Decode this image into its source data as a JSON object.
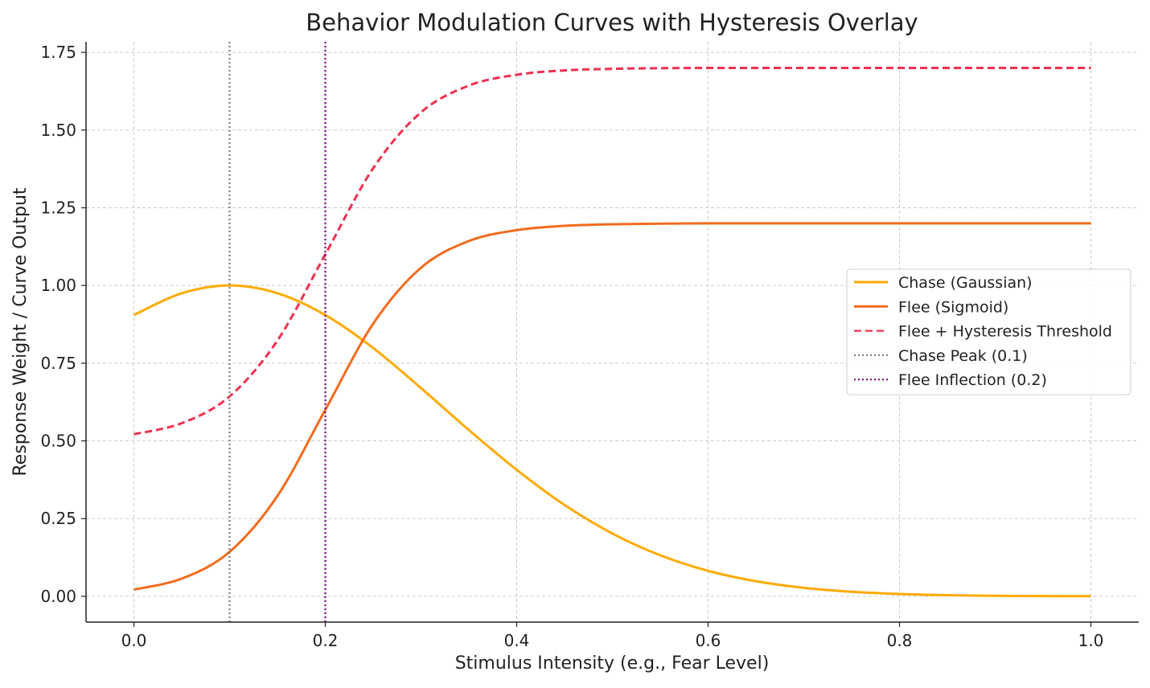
{
  "chart_data": {
    "type": "line",
    "title": "Behavior Modulation Curves with Hysteresis Overlay",
    "xlabel": "Stimulus Intensity (e.g., Fear Level)",
    "ylabel": "Response Weight / Curve Output",
    "xlim": [
      -0.05,
      1.05
    ],
    "ylim": [
      -0.083,
      1.784
    ],
    "xticks": [
      0.0,
      0.2,
      0.4,
      0.6,
      0.8,
      1.0
    ],
    "xtick_labels": [
      "0.0",
      "0.2",
      "0.4",
      "0.6",
      "0.8",
      "1.0"
    ],
    "yticks": [
      0.0,
      0.25,
      0.5,
      0.75,
      1.0,
      1.25,
      1.5,
      1.75
    ],
    "ytick_labels": [
      "0.00",
      "0.25",
      "0.50",
      "0.75",
      "1.00",
      "1.25",
      "1.50",
      "1.75"
    ],
    "grid": true,
    "legend_position": "center-right",
    "x": [
      0,
      0.05,
      0.1,
      0.15,
      0.2,
      0.25,
      0.3,
      0.35,
      0.4,
      0.45,
      0.5,
      0.55,
      0.6,
      0.65,
      0.7,
      0.75,
      0.8,
      0.85,
      0.9,
      0.95,
      1.0
    ],
    "series": [
      {
        "name": "Chase (Gaussian)",
        "color": "#FFAA00",
        "style": "solid",
        "values": [
          0.905,
          0.975,
          1.0,
          0.975,
          0.905,
          0.799,
          0.67,
          0.535,
          0.407,
          0.294,
          0.202,
          0.132,
          0.082,
          0.0486,
          0.0273,
          0.0146,
          0.0074,
          0.0036,
          0.0017,
          0.0007,
          0.0003
        ]
      },
      {
        "name": "Flee (Sigmoid)",
        "color": "#F26B1D",
        "style": "solid",
        "values": [
          0.0216,
          0.0569,
          0.143,
          0.323,
          0.6,
          0.877,
          1.057,
          1.143,
          1.178,
          1.192,
          1.197,
          1.199,
          1.2,
          1.2,
          1.2,
          1.2,
          1.2,
          1.2,
          1.2,
          1.2,
          1.2
        ]
      },
      {
        "name": "Flee + Hysteresis Threshold",
        "color": "#F0304F",
        "style": "dashed",
        "values": [
          0.5216,
          0.5569,
          0.643,
          0.823,
          1.1,
          1.377,
          1.557,
          1.643,
          1.678,
          1.692,
          1.697,
          1.699,
          1.7,
          1.7,
          1.7,
          1.7,
          1.7,
          1.7,
          1.7,
          1.7,
          1.7
        ]
      }
    ],
    "vlines": [
      {
        "name": "Chase Peak (0.1)",
        "x": 0.1,
        "color": "#808080",
        "style": "dotted"
      },
      {
        "name": "Flee Inflection (0.2)",
        "x": 0.2,
        "color": "#800080",
        "style": "dotted"
      }
    ]
  }
}
